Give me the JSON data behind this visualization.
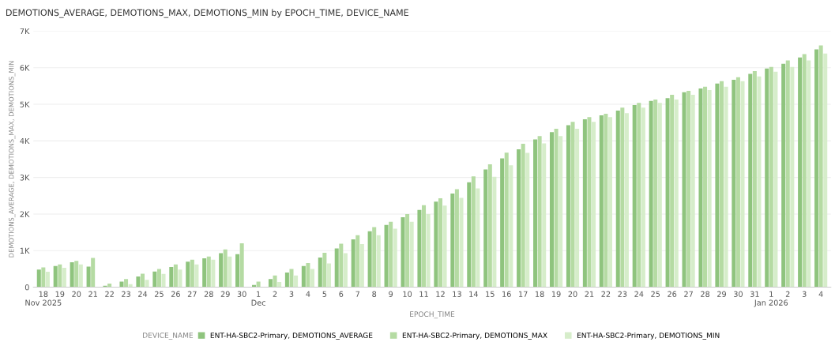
{
  "chart_data": {
    "type": "bar",
    "title": "DEMOTIONS_AVERAGE, DEMOTIONS_MAX, DEMOTIONS_MIN by EPOCH_TIME, DEVICE_NAME",
    "xlabel": "EPOCH_TIME",
    "ylabel": "DEMOTIONS_AVERAGE, DEMOTIONS_MAX, DEMOTIONS_MIN",
    "legend_title": "DEVICE_NAME",
    "categories": [
      "18\nNov 2025",
      "19",
      "20",
      "21",
      "22",
      "23",
      "24",
      "25",
      "26",
      "27",
      "28",
      "29",
      "30",
      "1\nDec",
      "2",
      "3",
      "4",
      "5",
      "6",
      "7",
      "8",
      "9",
      "10",
      "11",
      "12",
      "13",
      "14",
      "15",
      "16",
      "17",
      "18",
      "19",
      "20",
      "21",
      "22",
      "23",
      "24",
      "25",
      "26",
      "27",
      "28",
      "29",
      "30",
      "31",
      "1\nJan 2026",
      "2",
      "3",
      "4"
    ],
    "series": [
      {
        "name": "ENT-HA-SBC2-Primary, DEMOTIONS_AVERAGE",
        "color": "#8fc47e",
        "values": [
          480,
          580,
          680,
          560,
          40,
          150,
          290,
          430,
          550,
          700,
          790,
          930,
          900,
          60,
          220,
          400,
          580,
          810,
          1060,
          1310,
          1530,
          1700,
          1910,
          2110,
          2340,
          2560,
          2870,
          3220,
          3520,
          3770,
          4040,
          4240,
          4430,
          4590,
          4700,
          4830,
          4980,
          5090,
          5170,
          5330,
          5430,
          5570,
          5670,
          5830,
          5980,
          6110,
          6280,
          6500
        ]
      },
      {
        "name": "ENT-HA-SBC2-Primary, DEMOTIONS_MAX",
        "color": "#b5dba3",
        "values": [
          540,
          620,
          720,
          800,
          100,
          220,
          370,
          500,
          620,
          750,
          840,
          1030,
          1200,
          150,
          320,
          500,
          660,
          940,
          1190,
          1420,
          1640,
          1790,
          2000,
          2240,
          2430,
          2680,
          3030,
          3360,
          3680,
          3920,
          4130,
          4330,
          4520,
          4650,
          4740,
          4910,
          5040,
          5130,
          5260,
          5370,
          5480,
          5630,
          5740,
          5910,
          6020,
          6200,
          6370,
          6610
        ]
      },
      {
        "name": "ENT-HA-SBC2-Primary, DEMOTIONS_MIN",
        "color": "#d6edca",
        "values": [
          420,
          530,
          620,
          null,
          null,
          80,
          200,
          360,
          480,
          620,
          750,
          840,
          null,
          null,
          140,
          320,
          500,
          650,
          930,
          1180,
          1420,
          1600,
          1790,
          2000,
          2230,
          2440,
          2700,
          3020,
          3330,
          3670,
          3930,
          4130,
          4330,
          4520,
          4650,
          4760,
          4910,
          5040,
          5130,
          5260,
          5390,
          5480,
          5630,
          5760,
          5890,
          6020,
          6200,
          6390
        ]
      }
    ],
    "ylim": [
      0,
      7000
    ],
    "yticks": [
      0,
      {
        "value": 1000,
        "label": "1K"
      },
      {
        "value": 2000,
        "label": "2K"
      },
      {
        "value": 3000,
        "label": "3K"
      },
      {
        "value": 4000,
        "label": "4K"
      },
      {
        "value": 5000,
        "label": "5K"
      },
      {
        "value": 6000,
        "label": "6K"
      },
      {
        "value": 7000,
        "label": "7K"
      }
    ],
    "grid": "y",
    "legend": "bottom"
  }
}
